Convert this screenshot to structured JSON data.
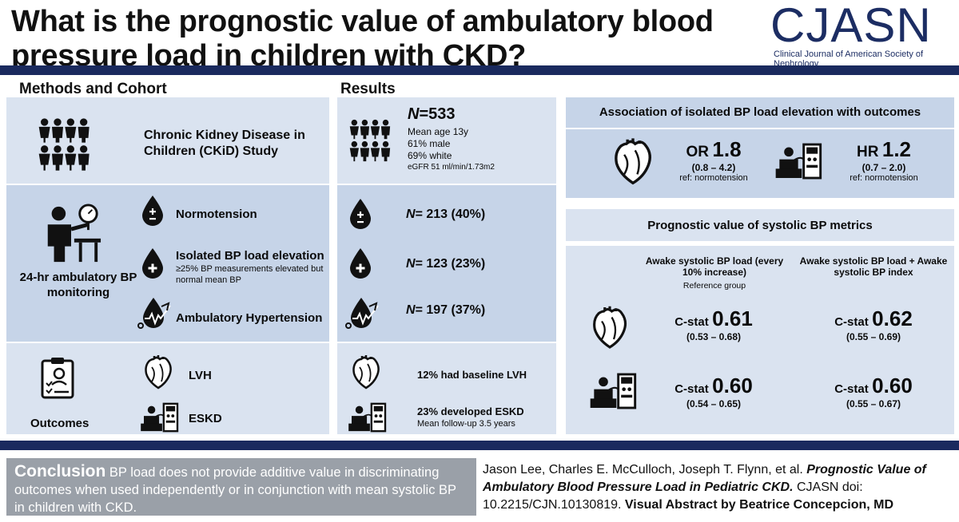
{
  "header": {
    "title": "What is the prognostic value of ambulatory blood pressure load in children with CKD?",
    "logo_text": "CJASN",
    "logo_subtitle": "Clinical Journal of American Society of Nephrology"
  },
  "methods": {
    "heading": "Methods and Cohort",
    "cohort_label": "Chronic Kidney Disease in Children (CKiD) Study",
    "monitoring_label": "24-hr ambulatory BP monitoring",
    "groups": [
      {
        "label": "Normotension",
        "note": ""
      },
      {
        "label": "Isolated BP load elevation",
        "note": "≥25% BP measurements elevated but normal mean BP"
      },
      {
        "label": "Ambulatory Hypertension",
        "note": ""
      }
    ],
    "outcomes_label": "Outcomes",
    "outcome_items": [
      "LVH",
      "ESKD"
    ]
  },
  "results": {
    "heading": "Results",
    "n_prefix": "N",
    "n_value": "=533",
    "demographics": [
      "Mean age 13y",
      "61% male",
      "69% white",
      "eGFR 51 ml/min/1.73m2"
    ],
    "group_counts": [
      "= 213 (40%)",
      "= 123 (23%)",
      "= 197 (37%)"
    ],
    "lvh_text": "12% had baseline LVH",
    "eskd_text": "23% developed ESKD",
    "followup": "Mean follow-up 3.5 years"
  },
  "association": {
    "heading": "Association of isolated BP load elevation with outcomes",
    "or_label": "OR",
    "or_value": "1.8",
    "or_ci": "(0.8 – 4.2)",
    "or_ref": "ref: normotension",
    "hr_label": "HR",
    "hr_value": "1.2",
    "hr_ci": "(0.7 – 2.0)",
    "hr_ref": "ref: normotension"
  },
  "prognostic": {
    "heading": "Prognostic value of  systolic BP metrics",
    "col1_title": "Awake systolic BP load (every 10% increase)",
    "col1_note": "Reference group",
    "col2_title": "Awake systolic BP load + Awake systolic BP index",
    "cstat_label": "C-stat",
    "lvh_c1": "0.61",
    "lvh_c1_ci": "(0.53 – 0.68)",
    "lvh_c2": "0.62",
    "lvh_c2_ci": "(0.55 – 0.69)",
    "eskd_c1": "0.60",
    "eskd_c1_ci": "(0.54 – 0.65)",
    "eskd_c2": "0.60",
    "eskd_c2_ci": "(0.55 – 0.67)"
  },
  "conclusion": {
    "lead": "Conclusion",
    "text": " BP load does not provide additive value in discriminating outcomes when used independently or in conjunction with mean systolic BP in children with CKD."
  },
  "citation": {
    "authors": "Jason Lee, Charles E. McCulloch, Joseph T. Flynn, et al. ",
    "paper_title": "Prognostic Value of Ambulatory Blood Pressure Load in Pediatric CKD.",
    "journal": " CJASN doi: 10.2215/CJN.10130819. ",
    "credit": "Visual Abstract by Beatrice Concepcion, MD"
  },
  "colors": {
    "navy": "#1a2a5e",
    "panel_light": "#dae3f0",
    "panel_mid": "#c6d4e8",
    "concl_gray": "#9aa0a8"
  }
}
